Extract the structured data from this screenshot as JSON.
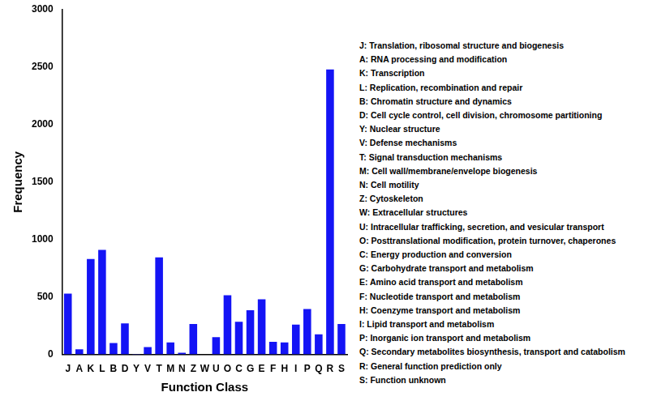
{
  "chart_data": {
    "type": "bar",
    "x_label": "Function Class",
    "y_label": "Frequency",
    "categories": [
      "J",
      "A",
      "K",
      "L",
      "B",
      "D",
      "Y",
      "V",
      "T",
      "M",
      "N",
      "Z",
      "W",
      "U",
      "O",
      "C",
      "G",
      "E",
      "F",
      "H",
      "I",
      "P",
      "Q",
      "R",
      "S"
    ],
    "values": [
      530,
      45,
      830,
      910,
      100,
      270,
      5,
      65,
      845,
      105,
      15,
      265,
      0,
      150,
      515,
      285,
      385,
      480,
      110,
      105,
      260,
      395,
      175,
      2480,
      265
    ],
    "color": "#1414f5",
    "ylim": [
      0,
      3000
    ],
    "yticks": [
      0,
      500,
      1000,
      1500,
      2000,
      2500,
      3000
    ],
    "grid": false,
    "annotations": [
      "J: Translation, ribosomal structure and biogenesis",
      "A: RNA processing and modification",
      "K: Transcription",
      "L: Replication, recombination and repair",
      "B: Chromatin structure and dynamics",
      "D: Cell cycle control, cell division, chromosome partitioning",
      "Y: Nuclear structure",
      "V: Defense mechanisms",
      "T: Signal transduction mechanisms",
      "M: Cell wall/membrane/envelope biogenesis",
      "N: Cell motility",
      "Z: Cytoskeleton",
      "W: Extracellular structures",
      "U: Intracellular trafficking, secretion, and vesicular transport",
      "O: Posttranslational modification, protein turnover, chaperones",
      "C: Energy production and conversion",
      "G: Carbohydrate transport and metabolism",
      "E: Amino acid transport and metabolism",
      "F: Nucleotide transport and metabolism",
      "H: Coenzyme transport and metabolism",
      "I: Lipid transport and metabolism",
      "P: Inorganic ion transport and metabolism",
      "Q: Secondary metabolites biosynthesis, transport and catabolism",
      "R: General function prediction only",
      "S: Function unknown"
    ]
  }
}
